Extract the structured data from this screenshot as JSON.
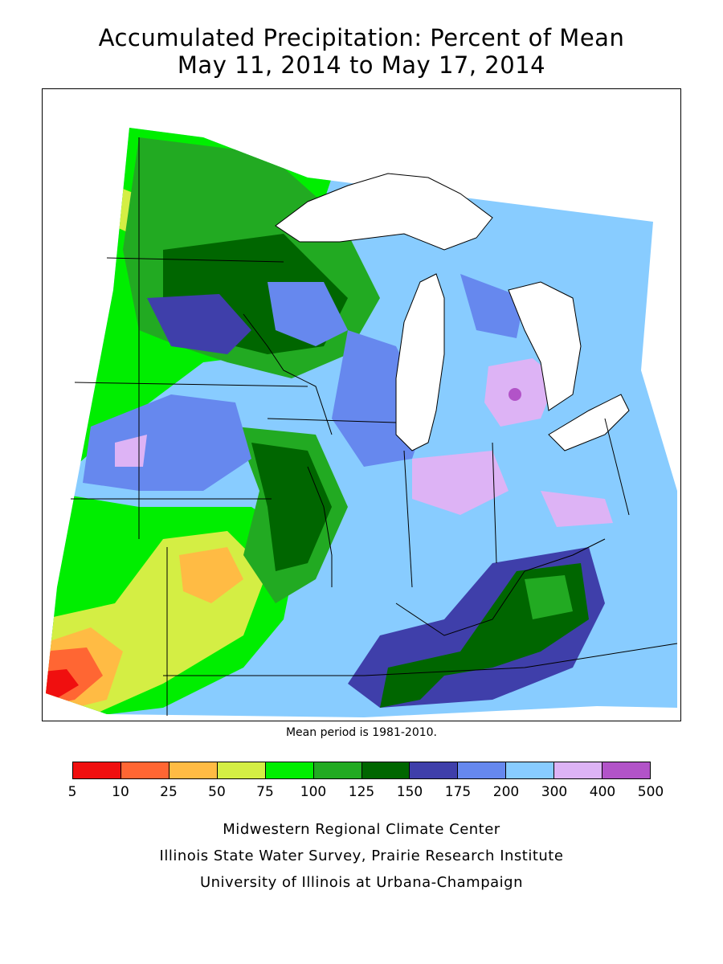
{
  "header": {
    "title_line1": "Accumulated Precipitation: Percent of Mean",
    "title_line2": "May 11, 2014 to May 17, 2014"
  },
  "map": {
    "region": "Midwest United States",
    "mean_note": "Mean period is 1981-2010."
  },
  "legend": {
    "labels": [
      "5",
      "10",
      "25",
      "50",
      "75",
      "100",
      "125",
      "150",
      "175",
      "200",
      "300",
      "400",
      "500"
    ],
    "colors": [
      "#f00f0f",
      "#ff6633",
      "#ffbb44",
      "#d4ee44",
      "#00ee00",
      "#22aa22",
      "#006600",
      "#3f3faa",
      "#6688ee",
      "#88ccff",
      "#ddb3f5",
      "#b253c8"
    ]
  },
  "credits": {
    "line1": "Midwestern Regional Climate Center",
    "line2": "Illinois State Water Survey, Prairie Research Institute",
    "line3": "University of Illinois at Urbana-Champaign"
  }
}
